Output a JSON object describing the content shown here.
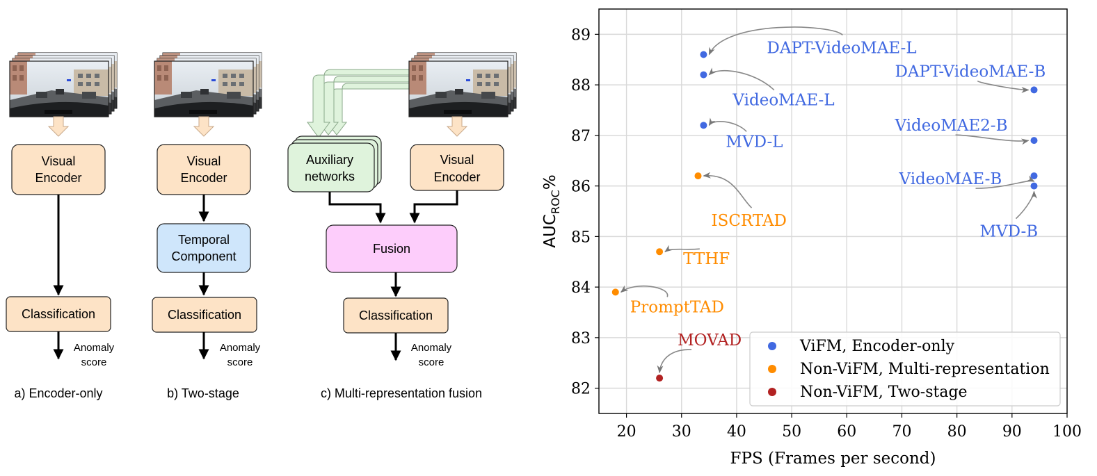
{
  "diagram": {
    "panel_a": {
      "encoder_line1": "Visual",
      "encoder_line2": "Encoder",
      "classification": "Classification",
      "output_line1": "Anomaly",
      "output_line2": "score",
      "caption": "a) Encoder-only"
    },
    "panel_b": {
      "encoder_line1": "Visual",
      "encoder_line2": "Encoder",
      "temporal_line1": "Temporal",
      "temporal_line2": "Component",
      "classification": "Classification",
      "output_line1": "Anomaly",
      "output_line2": "score",
      "caption": "b) Two-stage"
    },
    "panel_c": {
      "aux_line1": "Auxiliary",
      "aux_line2": "networks",
      "encoder_line1": "Visual",
      "encoder_line2": "Encoder",
      "fusion": "Fusion",
      "classification": "Classification",
      "output_line1": "Anomaly",
      "output_line2": "score",
      "caption": "c) Multi-representation fusion"
    },
    "colors": {
      "encoder_fill": "#fde3c6",
      "temporal_fill": "#cfe6fb",
      "classification_fill": "#fde3c6",
      "aux_fill": "#dff3dc",
      "fusion_fill": "#fdcdfb"
    },
    "frame_image": "dashcam-road-scene"
  },
  "chart_data": {
    "type": "scatter",
    "xlabel": "FPS (Frames per second)",
    "ylabel_main": "AUC",
    "ylabel_sub": "ROC",
    "ylabel_suffix": "%",
    "xlim": [
      15,
      100
    ],
    "ylim": [
      81.5,
      89.5
    ],
    "xticks": [
      20,
      30,
      40,
      50,
      60,
      70,
      80,
      90,
      100
    ],
    "yticks": [
      82,
      83,
      84,
      85,
      86,
      87,
      88,
      89
    ],
    "grid": true,
    "legend_position": "lower-right",
    "series": [
      {
        "name": "ViFM, Encoder-only",
        "color": "#4169e1",
        "points": [
          {
            "label": "DAPT-VideoMAE-L",
            "x": 34,
            "y": 88.6
          },
          {
            "label": "VideoMAE-L",
            "x": 34,
            "y": 88.2
          },
          {
            "label": "MVD-L",
            "x": 34,
            "y": 87.2
          },
          {
            "label": "DAPT-VideoMAE-B",
            "x": 94,
            "y": 87.9
          },
          {
            "label": "VideoMAE2-B",
            "x": 94,
            "y": 86.9
          },
          {
            "label": "VideoMAE-B",
            "x": 94,
            "y": 86.2
          },
          {
            "label": "MVD-B",
            "x": 94,
            "y": 86.0
          }
        ]
      },
      {
        "name": "Non-ViFM, Multi-representation",
        "color": "#ff8c00",
        "points": [
          {
            "label": "ISCRTAD",
            "x": 33,
            "y": 86.2
          },
          {
            "label": "TTHF",
            "x": 26,
            "y": 84.7
          },
          {
            "label": "PromptTAD",
            "x": 18,
            "y": 83.9
          }
        ]
      },
      {
        "name": "Non-ViFM, Two-stage",
        "color": "#b22222",
        "points": [
          {
            "label": "MOVAD",
            "x": 26,
            "y": 82.2
          }
        ]
      }
    ]
  }
}
